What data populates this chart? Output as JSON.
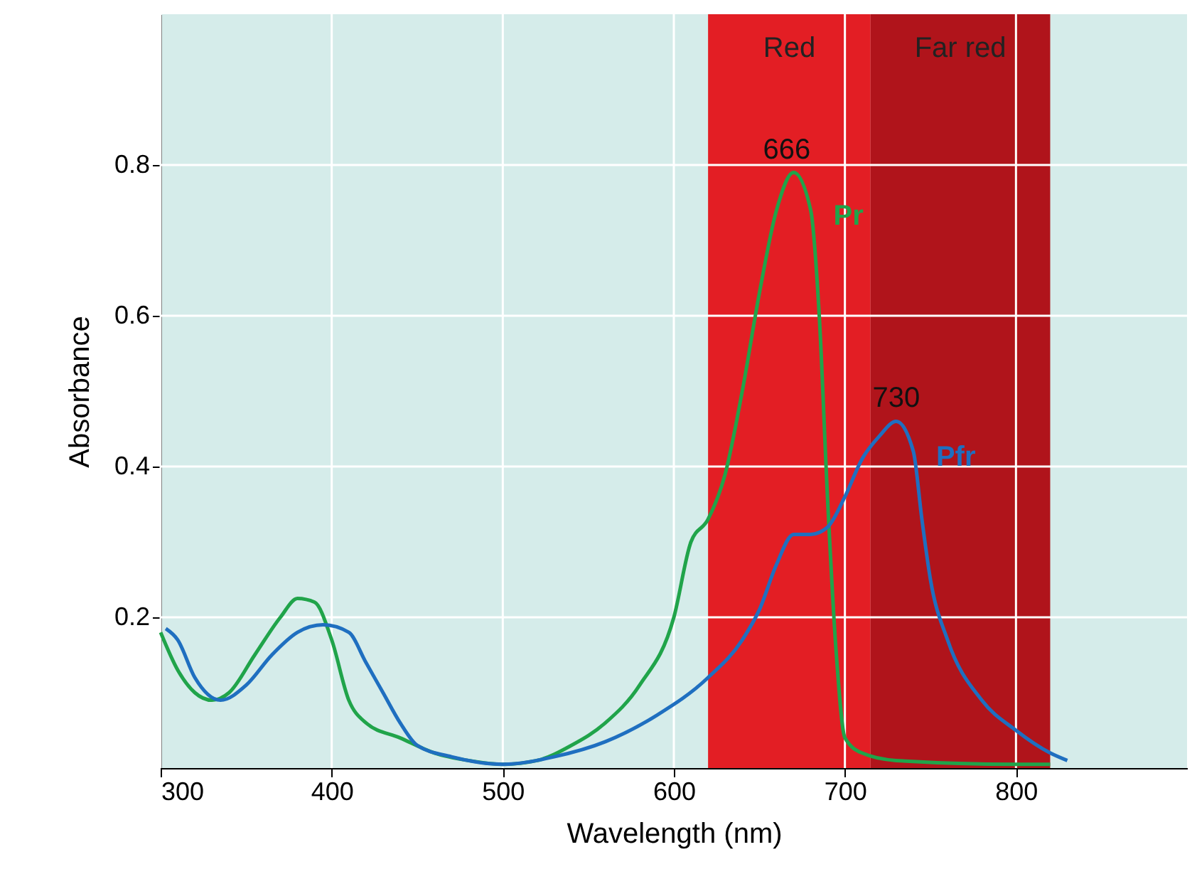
{
  "chart_data": {
    "type": "line",
    "xlabel": "Wavelength (nm)",
    "ylabel": "Absorbance",
    "xlim": [
      300,
      900
    ],
    "ylim": [
      0,
      1.0
    ],
    "xticks": [
      300,
      400,
      500,
      600,
      700,
      800
    ],
    "yticks": [
      0.2,
      0.4,
      0.6,
      0.8
    ],
    "grid": true,
    "line_style": "solid",
    "series": [
      {
        "name": "Pr",
        "color": "#20a44a",
        "x": [
          300,
          310,
          320,
          330,
          340,
          355,
          370,
          380,
          390,
          400,
          410,
          420,
          440,
          460,
          480,
          500,
          520,
          540,
          560,
          580,
          600,
          610,
          620,
          630,
          640,
          650,
          660,
          670,
          680,
          685,
          690,
          695,
          700,
          710,
          730,
          800,
          820
        ],
        "values": [
          0.18,
          0.13,
          0.1,
          0.09,
          0.1,
          0.15,
          0.2,
          0.225,
          0.22,
          0.17,
          0.09,
          0.06,
          0.04,
          0.02,
          0.01,
          0.005,
          0.01,
          0.03,
          0.06,
          0.11,
          0.2,
          0.3,
          0.33,
          0.39,
          0.5,
          0.63,
          0.74,
          0.79,
          0.74,
          0.6,
          0.35,
          0.15,
          0.04,
          0.02,
          0.01,
          0.005,
          0.005
        ]
      },
      {
        "name": "Pfr",
        "color": "#1f6fc0",
        "x": [
          303,
          310,
          320,
          335,
          350,
          365,
          380,
          395,
          410,
          420,
          430,
          440,
          450,
          470,
          500,
          530,
          560,
          590,
          620,
          640,
          650,
          660,
          670,
          680,
          690,
          700,
          710,
          720,
          730,
          740,
          745,
          750,
          760,
          780,
          800,
          820,
          830
        ],
        "values": [
          0.185,
          0.17,
          0.12,
          0.09,
          0.11,
          0.15,
          0.18,
          0.19,
          0.18,
          0.14,
          0.1,
          0.06,
          0.03,
          0.015,
          0.005,
          0.015,
          0.035,
          0.07,
          0.12,
          0.17,
          0.21,
          0.27,
          0.31,
          0.31,
          0.32,
          0.36,
          0.41,
          0.44,
          0.46,
          0.42,
          0.33,
          0.25,
          0.17,
          0.09,
          0.05,
          0.02,
          0.01
        ]
      }
    ],
    "bands": [
      {
        "axis": "x",
        "from": 620,
        "to": 715,
        "label": "Red",
        "color": "#e31e24"
      },
      {
        "axis": "x",
        "from": 715,
        "to": 820,
        "label": "Far red",
        "color": "#b0141b"
      }
    ],
    "annotations": [
      {
        "text": "666",
        "x": 666,
        "y": 0.79
      },
      {
        "text": "730",
        "x": 730,
        "y": 0.46
      }
    ]
  }
}
